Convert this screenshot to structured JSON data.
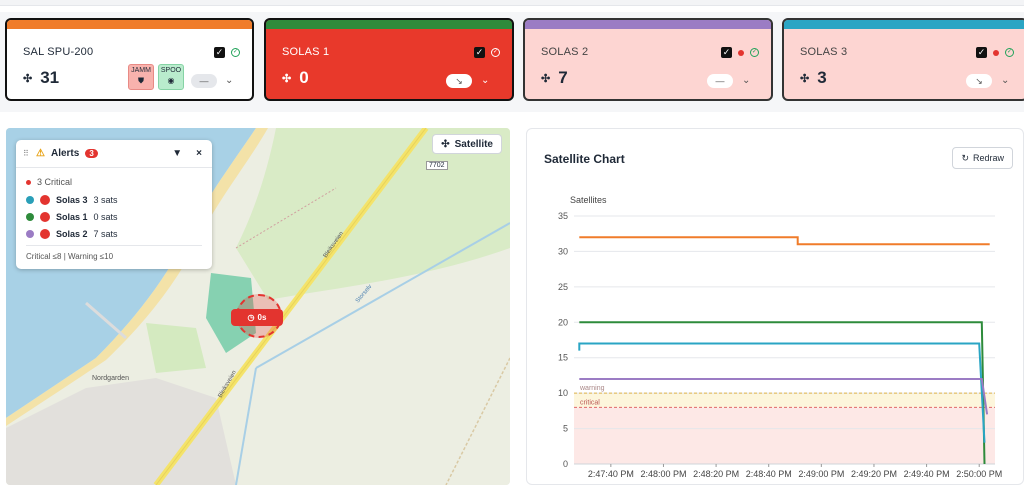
{
  "cards": [
    {
      "name": "SAL SPU-200",
      "count": "31",
      "stripe": "#f07c2a",
      "bg": "#ffffff",
      "tags": [
        "JAMM",
        "SPOO"
      ],
      "pill": "—"
    },
    {
      "name": "SOLAS 1",
      "count": "0",
      "stripe": "#2e8b3b",
      "bg": "#e8392b",
      "pill": "↘"
    },
    {
      "name": "SOLAS 2",
      "count": "7",
      "stripe": "#9b7cc4",
      "bg": "#fdd5d2",
      "pill": "—"
    },
    {
      "name": "SOLAS 3",
      "count": "3",
      "stripe": "#2aa5c4",
      "bg": "#fdd5d2",
      "pill": "↘"
    }
  ],
  "map": {
    "satellite_button": "Satellite",
    "road_number": "7702",
    "marker_label": "0s",
    "place_label": "Nordgarden",
    "road_labels": [
      "Bleiksveien",
      "Bleiksveien",
      "Storselv"
    ]
  },
  "alerts": {
    "title": "Alerts",
    "badge": "3",
    "critical_label": "3 Critical",
    "rows": [
      {
        "name": "Solas 3",
        "sats": "3 sats",
        "color": "#2a9fb8"
      },
      {
        "name": "Solas 1",
        "sats": "0 sats",
        "color": "#2e8b3b"
      },
      {
        "name": "Solas 2",
        "sats": "7 sats",
        "color": "#9b7cc4"
      }
    ],
    "footer": "Critical ≤8 | Warning ≤10"
  },
  "chart": {
    "title": "Satellite Chart",
    "redraw_label": "Redraw"
  },
  "chart_data": {
    "type": "line",
    "ylabel": "Satellites",
    "ylim": [
      0,
      35
    ],
    "yticks": [
      0,
      5,
      10,
      15,
      20,
      25,
      30,
      35
    ],
    "xticks": [
      "2:47:40 PM",
      "2:48:00 PM",
      "2:48:20 PM",
      "2:48:40 PM",
      "2:49:00 PM",
      "2:49:20 PM",
      "2:49:40 PM",
      "2:50:00 PM"
    ],
    "x_seconds": [
      0,
      20,
      40,
      60,
      80,
      100,
      120,
      140
    ],
    "thresholds": [
      {
        "label": "warning",
        "value": 10,
        "color": "#e0b44a"
      },
      {
        "label": "critical",
        "value": 8,
        "color": "#e06a6a"
      }
    ],
    "series": [
      {
        "color": "#f07c2a",
        "points": [
          [
            -12,
            32
          ],
          [
            71,
            32
          ],
          [
            71,
            31
          ],
          [
            144,
            31
          ]
        ]
      },
      {
        "color": "#2e8b3b",
        "points": [
          [
            -12,
            20
          ],
          [
            141,
            20
          ],
          [
            142,
            0
          ]
        ]
      },
      {
        "color": "#2aa5c4",
        "points": [
          [
            -12,
            16
          ],
          [
            -12,
            17
          ],
          [
            140,
            17
          ],
          [
            142,
            3
          ]
        ]
      },
      {
        "color": "#9b7cc4",
        "points": [
          [
            -12,
            12
          ],
          [
            141,
            12
          ],
          [
            143,
            7
          ]
        ]
      }
    ]
  }
}
